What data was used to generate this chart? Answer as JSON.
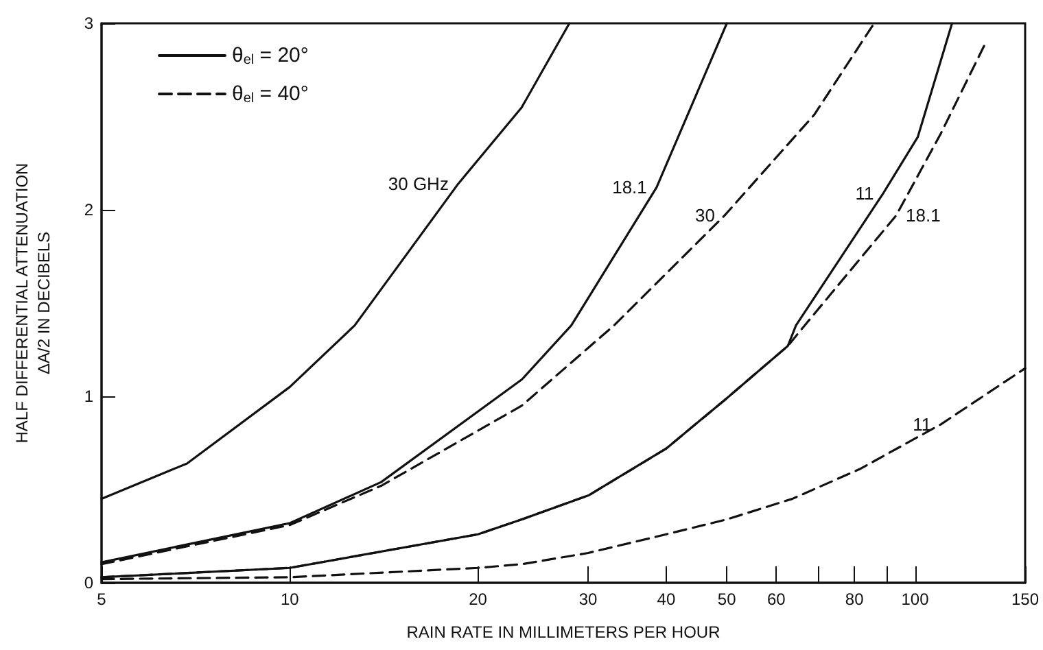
{
  "chart_data": {
    "type": "line",
    "xlabel": "RAIN RATE IN MILLIMETERS PER HOUR",
    "ylabel": "HALF DIFFERENTIAL ATTENUATION\nΔA/2 IN DECIBELS",
    "log": "x",
    "grid": false,
    "legend": "top left",
    "marker": "none",
    "xlim": [
      5,
      150
    ],
    "xticks": [
      5,
      10,
      20,
      30,
      40,
      50,
      60,
      {
        "value": 70,
        "label": null
      },
      80,
      {
        "value": 90,
        "label": null
      },
      100,
      150
    ],
    "ylim": [
      0,
      3
    ],
    "yticks": [
      0,
      1,
      2,
      3
    ],
    "series": [
      {
        "name": "θ$_{el}$ = 20°",
        "color": "#111111",
        "line_style": "solid",
        "x": [
          5,
          6.85,
          10,
          12.7,
          18.6,
          23.5,
          28
        ],
        "values": [
          0.45,
          0.64,
          1.05,
          1.38,
          2.14,
          2.55,
          3.0
        ]
      },
      {
        "name": "θ$_{el}$ = 40°",
        "color": "#111111",
        "line_style": "dashed",
        "x": [
          5,
          10,
          14,
          23.5,
          33,
          49.6,
          69,
          86
        ],
        "values": [
          0.1,
          0.31,
          0.52,
          0.95,
          1.38,
          1.97,
          2.51,
          3.0
        ]
      },
      {
        "color": "#111111",
        "line_style": "solid",
        "x": [
          5,
          10,
          14,
          23.5,
          28.2,
          38.6,
          50
        ],
        "values": [
          0.11,
          0.32,
          0.54,
          1.09,
          1.38,
          2.12,
          3.0
        ]
      },
      {
        "color": "#111111",
        "line_style": "dashed",
        "x": [
          5,
          10,
          20,
          23.5,
          30.1,
          40,
          49.6,
          62.6,
          66.6,
          93.3,
          110,
          129
        ],
        "values": [
          0.03,
          0.08,
          0.26,
          0.34,
          0.47,
          0.72,
          0.98,
          1.27,
          1.38,
          1.97,
          2.41,
          2.88
        ]
      },
      {
        "color": "#111111",
        "line_style": "solid",
        "x": [
          5,
          10,
          20,
          23.5,
          30.1,
          40,
          49.6,
          62.6,
          64.5,
          89,
          101,
          114.6
        ],
        "values": [
          0.03,
          0.08,
          0.26,
          0.34,
          0.47,
          0.72,
          0.98,
          1.27,
          1.38,
          2.09,
          2.39,
          3.0
        ]
      },
      {
        "color": "#111111",
        "line_style": "dashed",
        "x": [
          5,
          10,
          20,
          23.5,
          30,
          40,
          50,
          63.6,
          81.6,
          110,
          150
        ],
        "values": [
          0.02,
          0.03,
          0.08,
          0.1,
          0.16,
          0.26,
          0.34,
          0.45,
          0.61,
          0.85,
          1.15
        ]
      }
    ],
    "annotations": [
      {
        "text": "30 GHz",
        "x": 18.6,
        "y": 2.14
      },
      {
        "text": "18.1",
        "x": 38.6,
        "y": 2.12
      },
      {
        "text": "30",
        "x": 49.6,
        "y": 1.97
      },
      {
        "text": "11",
        "x": 89,
        "y": 2.09
      },
      {
        "text": "18.1",
        "x": 93.3,
        "y": 1.97
      },
      {
        "text": "11",
        "x": 110,
        "y": 0.85
      }
    ]
  }
}
